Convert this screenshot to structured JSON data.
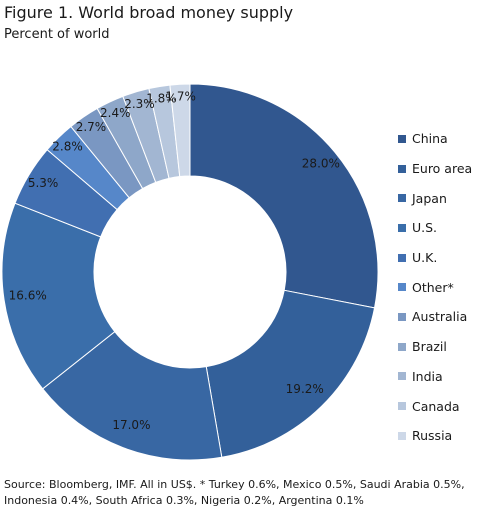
{
  "figure": {
    "title": "Figure 1. World broad money supply",
    "subtitle": "Percent of world",
    "source": "Source: Bloomberg, IMF. All in US$. * Turkey 0.6%, Mexico 0.5%, Saudi Arabia 0.5%, Indonesia 0.4%, South Africa 0.3%, Nigeria 0.2%, Argentina 0.1%"
  },
  "chart_data": {
    "type": "pie",
    "variant": "donut",
    "title": "Figure 1. World broad money supply",
    "subtitle": "Percent of world",
    "categories": [
      "China",
      "Euro area",
      "Japan",
      "U.S.",
      "U.K.",
      "Other*",
      "Australia",
      "Brazil",
      "India",
      "Canada",
      "Russia"
    ],
    "values": [
      28.0,
      19.2,
      17.0,
      16.6,
      5.3,
      2.8,
      2.7,
      2.4,
      2.3,
      1.8,
      1.7
    ],
    "data_labels": [
      "28.0%",
      "19.2%",
      "17.0%",
      "16.6%",
      "5.3%",
      "2.8%",
      "2.7%",
      "2.4%",
      "2.3%",
      "1.8%",
      "1.7%"
    ],
    "colors": [
      "#31578f",
      "#33609a",
      "#3867a3",
      "#3a6eaa",
      "#416fb1",
      "#5687c9",
      "#7a97c2",
      "#8ea7c9",
      "#a2b6d2",
      "#b7c7dd",
      "#cdd8e8"
    ],
    "legend_position": "right",
    "start_angle_deg": 0,
    "direction": "clockwise"
  }
}
